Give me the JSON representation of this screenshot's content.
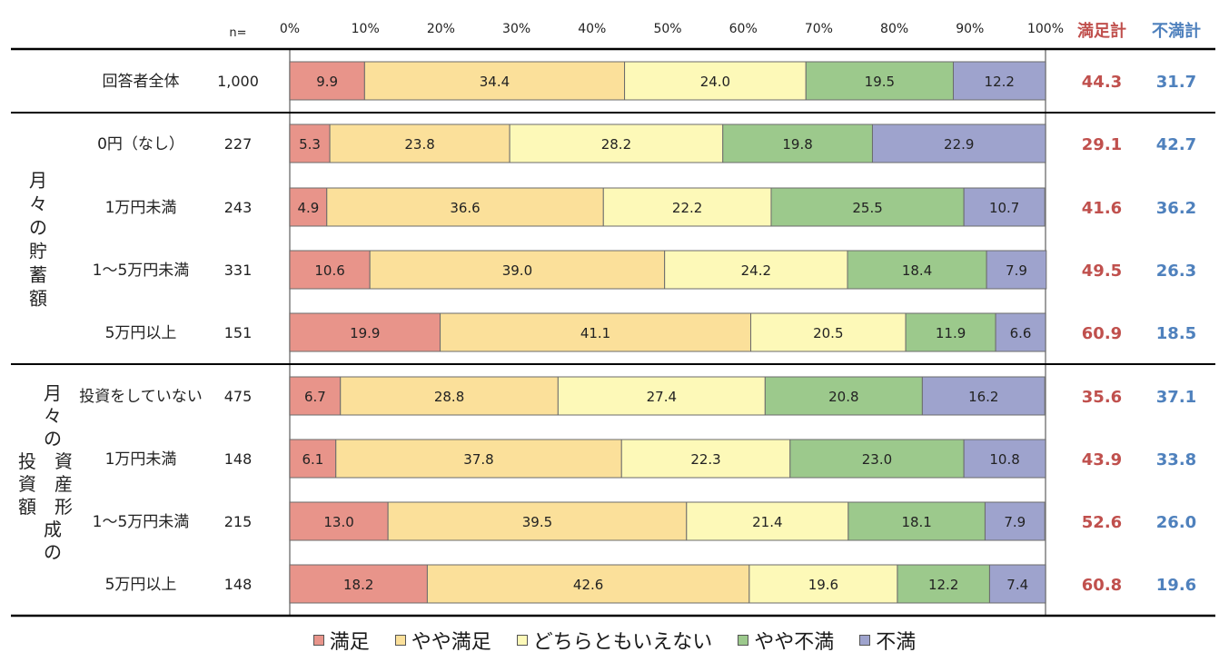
{
  "chart_data": {
    "type": "bar",
    "orientation": "horizontal-stacked-100",
    "n_header": "n=",
    "axis_ticks": [
      "0%",
      "10%",
      "20%",
      "30%",
      "40%",
      "50%",
      "60%",
      "70%",
      "80%",
      "90%",
      "100%"
    ],
    "xlim": [
      0,
      100
    ],
    "summary_headers": {
      "satisfied_total": "満足計",
      "dissatisfied_total": "不満計"
    },
    "series": [
      {
        "name": "満足",
        "color": "#e8948a"
      },
      {
        "name": "やや満足",
        "color": "#fbe09a"
      },
      {
        "name": "どちらともいえない",
        "color": "#fdf9b8"
      },
      {
        "name": "やや不満",
        "color": "#9cc98c"
      },
      {
        "name": "不満",
        "color": "#9ea3cd"
      }
    ],
    "summary_colors": {
      "satisfied_total": "#c0504d",
      "dissatisfied_total": "#4f81bd"
    },
    "groups": [
      {
        "label": "",
        "rows": [
          {
            "label": "回答者全体",
            "n": "1,000",
            "values": [
              9.9,
              34.4,
              24.0,
              19.5,
              12.2
            ],
            "value_labels": [
              "9.9",
              "34.4",
              "24.0",
              "19.5",
              "12.2"
            ],
            "satisfied_total": "44.3",
            "dissatisfied_total": "31.7"
          }
        ]
      },
      {
        "label": "月々の貯蓄額",
        "rows": [
          {
            "label": "0円（なし）",
            "n": "227",
            "values": [
              5.3,
              23.8,
              28.2,
              19.8,
              22.9
            ],
            "value_labels": [
              "5.3",
              "23.8",
              "28.2",
              "19.8",
              "22.9"
            ],
            "satisfied_total": "29.1",
            "dissatisfied_total": "42.7"
          },
          {
            "label": "1万円未満",
            "n": "243",
            "values": [
              4.9,
              36.6,
              22.2,
              25.5,
              10.7
            ],
            "value_labels": [
              "4.9",
              "36.6",
              "22.2",
              "25.5",
              "10.7"
            ],
            "satisfied_total": "41.6",
            "dissatisfied_total": "36.2"
          },
          {
            "label": "1～5万円未満",
            "n": "331",
            "values": [
              10.6,
              39.0,
              24.2,
              18.4,
              7.9
            ],
            "value_labels": [
              "10.6",
              "39.0",
              "24.2",
              "18.4",
              "7.9"
            ],
            "satisfied_total": "49.5",
            "dissatisfied_total": "26.3"
          },
          {
            "label": "5万円以上",
            "n": "151",
            "values": [
              19.9,
              41.1,
              20.5,
              11.9,
              6.6
            ],
            "value_labels": [
              "19.9",
              "41.1",
              "20.5",
              "11.9",
              "6.6"
            ],
            "satisfied_total": "60.9",
            "dissatisfied_total": "18.5"
          }
        ]
      },
      {
        "label": "月々の資産形成の投資額",
        "rows": [
          {
            "label": "投資をしていない",
            "n": "475",
            "values": [
              6.7,
              28.8,
              27.4,
              20.8,
              16.2
            ],
            "value_labels": [
              "6.7",
              "28.8",
              "27.4",
              "20.8",
              "16.2"
            ],
            "satisfied_total": "35.6",
            "dissatisfied_total": "37.1"
          },
          {
            "label": "1万円未満",
            "n": "148",
            "values": [
              6.1,
              37.8,
              22.3,
              23.0,
              10.8
            ],
            "value_labels": [
              "6.1",
              "37.8",
              "22.3",
              "23.0",
              "10.8"
            ],
            "satisfied_total": "43.9",
            "dissatisfied_total": "33.8"
          },
          {
            "label": "1～5万円未満",
            "n": "215",
            "values": [
              13.0,
              39.5,
              21.4,
              18.1,
              7.9
            ],
            "value_labels": [
              "13.0",
              "39.5",
              "21.4",
              "18.1",
              "7.9"
            ],
            "satisfied_total": "52.6",
            "dissatisfied_total": "26.0"
          },
          {
            "label": "5万円以上",
            "n": "148",
            "values": [
              18.2,
              42.6,
              19.6,
              12.2,
              7.4
            ],
            "value_labels": [
              "18.2",
              "42.6",
              "19.6",
              "12.2",
              "7.4"
            ],
            "satisfied_total": "60.8",
            "dissatisfied_total": "19.6"
          }
        ]
      }
    ]
  }
}
